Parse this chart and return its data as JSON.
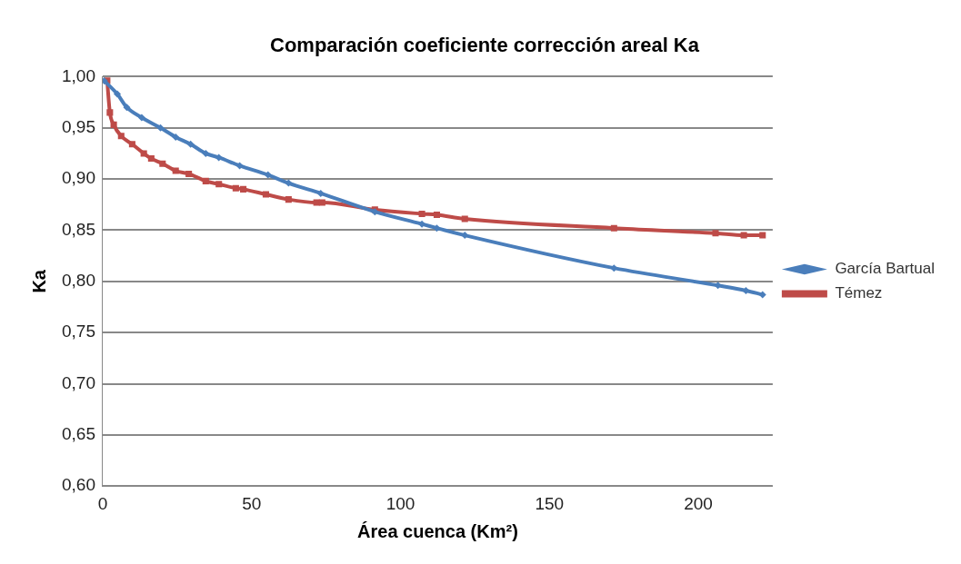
{
  "chart_data": {
    "type": "line",
    "title": "Comparación coeficiente corrección areal Ka",
    "xlabel": "Área cuenca (Km²)",
    "ylabel": "Ka",
    "xlim": [
      0,
      225
    ],
    "xticks": [
      0,
      50,
      100,
      150,
      200
    ],
    "ylim": [
      0.6,
      1.0
    ],
    "yticks": [
      {
        "value": 0.6,
        "label": "0,60"
      },
      {
        "value": 0.65,
        "label": "0,65"
      },
      {
        "value": 0.7,
        "label": "0,70"
      },
      {
        "value": 0.75,
        "label": "0,75"
      },
      {
        "value": 0.8,
        "label": "0,80"
      },
      {
        "value": 0.85,
        "label": "0,85"
      },
      {
        "value": 0.9,
        "label": "0,90"
      },
      {
        "value": 0.95,
        "label": "0,95"
      },
      {
        "value": 1.0,
        "label": "1,00"
      }
    ],
    "grid": "y",
    "legend": "right",
    "series": [
      {
        "name": "García Bartual",
        "color": "#4a7ebb",
        "marker": "diamond",
        "x": [
          0.5,
          4.9,
          8.1,
          13.1,
          19.4,
          24.5,
          29.5,
          34.6,
          39.0,
          46.0,
          55.5,
          62.4,
          73.2,
          91.4,
          107.2,
          112.2,
          121.6,
          171.7,
          206.6,
          216.0,
          221.6
        ],
        "values": [
          0.996,
          0.983,
          0.97,
          0.96,
          0.95,
          0.941,
          0.934,
          0.925,
          0.921,
          0.913,
          0.904,
          0.896,
          0.886,
          0.868,
          0.856,
          0.852,
          0.845,
          0.813,
          0.796,
          0.791,
          0.787
        ]
      },
      {
        "name": "Témez",
        "color": "#be4b48",
        "marker": "square",
        "x": [
          1.5,
          2.4,
          3.7,
          6.2,
          9.9,
          13.8,
          16.3,
          20.1,
          24.5,
          28.9,
          34.6,
          39.0,
          44.7,
          47.2,
          54.8,
          62.4,
          71.8,
          73.7,
          91.4,
          107.2,
          112.2,
          121.6,
          171.7,
          205.8,
          215.3,
          221.6
        ],
        "values": [
          0.996,
          0.965,
          0.953,
          0.942,
          0.934,
          0.925,
          0.92,
          0.915,
          0.908,
          0.905,
          0.898,
          0.895,
          0.891,
          0.89,
          0.885,
          0.88,
          0.877,
          0.877,
          0.87,
          0.866,
          0.865,
          0.861,
          0.852,
          0.847,
          0.845,
          0.845
        ]
      }
    ]
  }
}
